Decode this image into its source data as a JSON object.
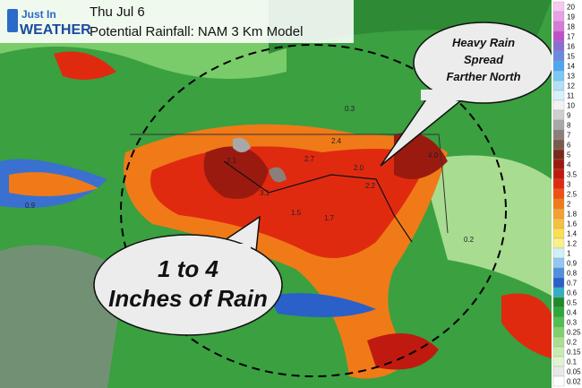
{
  "header": {
    "logo": {
      "line1": "Just In",
      "line2": "WEATHER"
    },
    "date": "Thu Jul 6",
    "title": "Potential Rainfall: NAM 3 Km Model"
  },
  "callouts": [
    {
      "lines": [
        "Heavy Rain",
        "Spread",
        "Farther North"
      ]
    },
    {
      "lines": [
        "1 to 4",
        "Inches of Rain"
      ]
    }
  ],
  "map_labels": [
    "2.1",
    "3.1",
    "2.4",
    "2.7",
    "4.0",
    "2.2",
    "1.5",
    "0.9",
    "0.3",
    "0.2",
    "2.0",
    "1.7"
  ],
  "legend": {
    "entries": [
      {
        "label": 20,
        "color": "#f7c8f0"
      },
      {
        "label": 19,
        "color": "#e9a0e6"
      },
      {
        "label": 18,
        "color": "#d77ad8"
      },
      {
        "label": 17,
        "color": "#c050c8"
      },
      {
        "label": 16,
        "color": "#8a6fd0"
      },
      {
        "label": 15,
        "color": "#6a8ae0"
      },
      {
        "label": 14,
        "color": "#4ea6f0"
      },
      {
        "label": 13,
        "color": "#7cc8f5"
      },
      {
        "label": 12,
        "color": "#b0e0f8"
      },
      {
        "label": 11,
        "color": "#d8f0fa"
      },
      {
        "label": 10,
        "color": "#f2f2f2"
      },
      {
        "label": 9,
        "color": "#cfcfcf"
      },
      {
        "label": 8,
        "color": "#a8a8a8"
      },
      {
        "label": 7,
        "color": "#8a7f7a"
      },
      {
        "label": 6,
        "color": "#7a5a4a"
      },
      {
        "label": 5,
        "color": "#7a2a1a"
      },
      {
        "label": 4,
        "color": "#9a1a10"
      },
      {
        "label": 3.5,
        "color": "#c01a10"
      },
      {
        "label": 3,
        "color": "#e02a10"
      },
      {
        "label": 2.5,
        "color": "#f05010"
      },
      {
        "label": 2,
        "color": "#f07a18"
      },
      {
        "label": 1.8,
        "color": "#f4a030"
      },
      {
        "label": 1.6,
        "color": "#f6c040"
      },
      {
        "label": 1.4,
        "color": "#f8e050"
      },
      {
        "label": 1.2,
        "color": "#f8f08a"
      },
      {
        "label": 1,
        "color": "#d0f0f8"
      },
      {
        "label": 0.9,
        "color": "#90c8f0"
      },
      {
        "label": 0.8,
        "color": "#5090e0"
      },
      {
        "label": 0.7,
        "color": "#2a60c8"
      },
      {
        "label": 0.6,
        "color": "#30b0c0"
      },
      {
        "label": 0.5,
        "color": "#1e8a2a"
      },
      {
        "label": 0.4,
        "color": "#2ea83a"
      },
      {
        "label": 0.3,
        "color": "#50c050"
      },
      {
        "label": 0.25,
        "color": "#80d070"
      },
      {
        "label": 0.2,
        "color": "#a8e090"
      },
      {
        "label": 0.15,
        "color": "#c8ecb0"
      },
      {
        "label": 0.1,
        "color": "#e0f4d0"
      },
      {
        "label": 0.05,
        "color": "#e8e8e8"
      },
      {
        "label": 0.02,
        "color": "#ffffff"
      }
    ]
  }
}
